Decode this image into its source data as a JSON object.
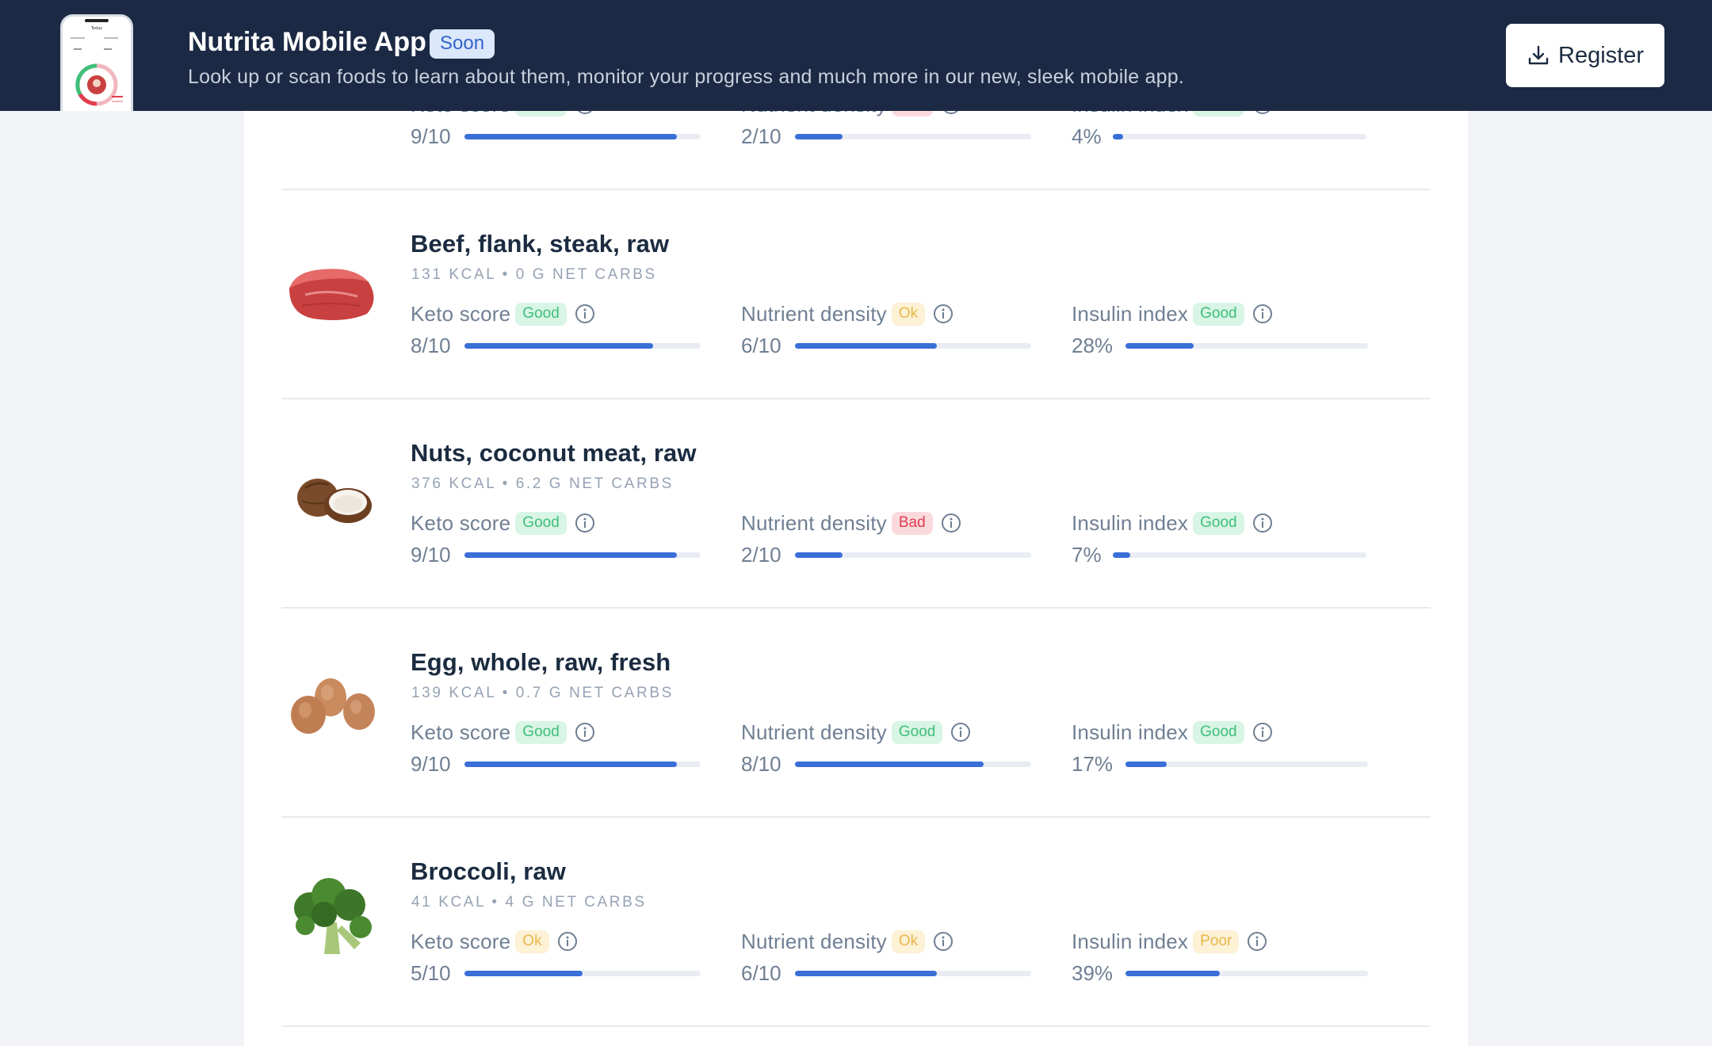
{
  "banner": {
    "title": "Nutrita Mobile App",
    "badge": "Soon",
    "subtitle": "Look up or scan foods to learn about them, monitor your progress and much more in our new, sleek mobile app.",
    "register_label": "Register",
    "phone_screen_title": "Today"
  },
  "colors": {
    "banner_bg": "#1b2944",
    "bar_fill": "#3a6fd8",
    "good": "#3fbf7a",
    "ok": "#e9b84a",
    "bad": "#e03c4e"
  },
  "partial_item": {
    "keto": {
      "label": "Keto score",
      "badge": "Good",
      "value": "9/10",
      "fill": 0.9
    },
    "nutrient": {
      "label": "Nutrient density",
      "badge": "Bad",
      "value": "2/10",
      "fill": 0.2
    },
    "insulin": {
      "label": "Insulin index",
      "badge": "Good",
      "value": "4%",
      "fill": 0.04
    }
  },
  "foods": [
    {
      "name": "Beef, flank, steak, raw",
      "meta": "131 KCAL • 0 G NET CARBS",
      "image": "beef-steak-image",
      "keto": {
        "label": "Keto score",
        "badge": "Good",
        "value": "8/10",
        "fill": 0.8
      },
      "nutrient": {
        "label": "Nutrient density",
        "badge": "Ok",
        "value": "6/10",
        "fill": 0.6
      },
      "insulin": {
        "label": "Insulin index",
        "badge": "Good",
        "value": "28%",
        "fill": 0.28
      }
    },
    {
      "name": "Nuts, coconut meat, raw",
      "meta": "376 KCAL • 6.2 G NET CARBS",
      "image": "coconut-image",
      "keto": {
        "label": "Keto score",
        "badge": "Good",
        "value": "9/10",
        "fill": 0.9
      },
      "nutrient": {
        "label": "Nutrient density",
        "badge": "Bad",
        "value": "2/10",
        "fill": 0.2
      },
      "insulin": {
        "label": "Insulin index",
        "badge": "Good",
        "value": "7%",
        "fill": 0.07
      }
    },
    {
      "name": "Egg, whole, raw, fresh",
      "meta": "139 KCAL • 0.7 G NET CARBS",
      "image": "eggs-image",
      "keto": {
        "label": "Keto score",
        "badge": "Good",
        "value": "9/10",
        "fill": 0.9
      },
      "nutrient": {
        "label": "Nutrient density",
        "badge": "Good",
        "value": "8/10",
        "fill": 0.8
      },
      "insulin": {
        "label": "Insulin index",
        "badge": "Good",
        "value": "17%",
        "fill": 0.17
      }
    },
    {
      "name": "Broccoli, raw",
      "meta": "41 KCAL • 4 G NET CARBS",
      "image": "broccoli-image",
      "keto": {
        "label": "Keto score",
        "badge": "Ok",
        "value": "5/10",
        "fill": 0.5
      },
      "nutrient": {
        "label": "Nutrient density",
        "badge": "Ok",
        "value": "6/10",
        "fill": 0.6
      },
      "insulin": {
        "label": "Insulin index",
        "badge": "Poor",
        "value": "39%",
        "fill": 0.39
      }
    }
  ]
}
